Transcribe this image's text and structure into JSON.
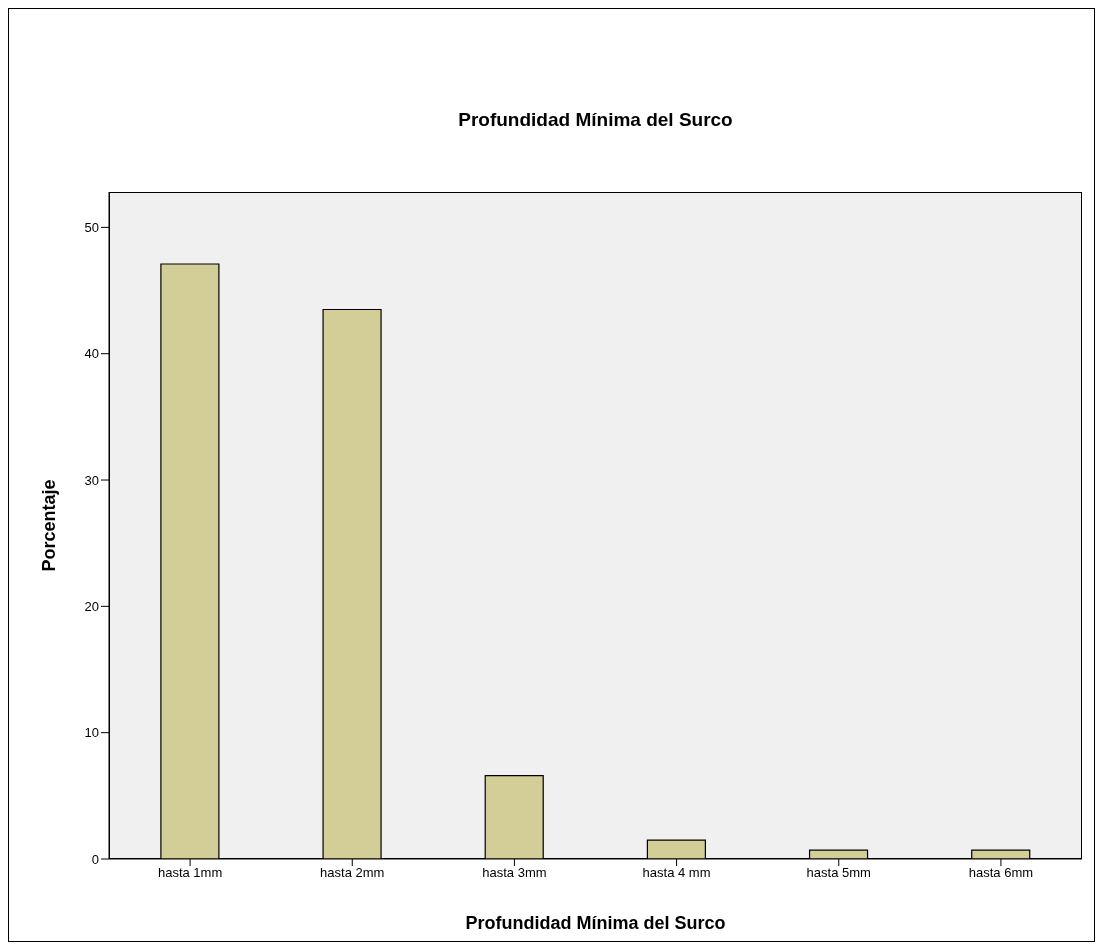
{
  "chart_data": {
    "type": "bar",
    "title": "Profundidad Mínima del Surco",
    "xlabel": "Profundidad Mínima del Surco",
    "ylabel": "Porcentaje",
    "categories": [
      "hasta 1mm",
      "hasta 2mm",
      "hasta 3mm",
      "hasta 4 mm",
      "hasta 5mm",
      "hasta 6mm"
    ],
    "values": [
      47.1,
      43.5,
      6.6,
      1.5,
      0.7,
      0.7
    ],
    "color": "#d3ce97",
    "ylim": [
      0,
      52.8
    ],
    "yticks": [
      0,
      10,
      20,
      30,
      40,
      50
    ],
    "grid": false
  }
}
